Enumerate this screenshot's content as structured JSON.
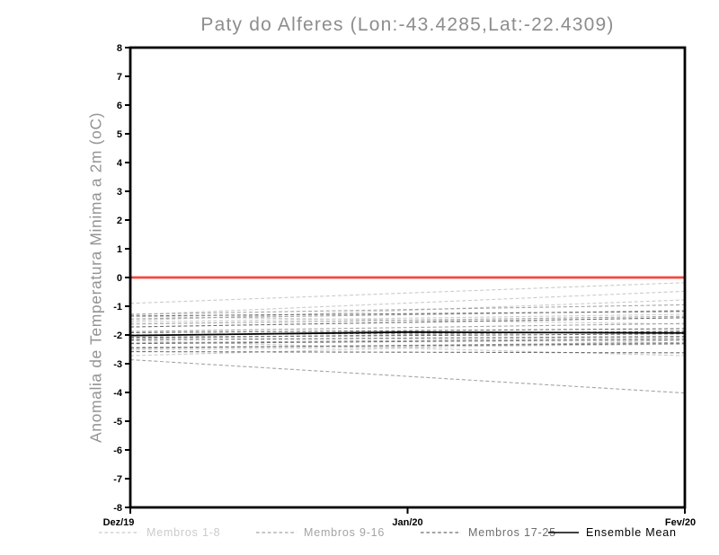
{
  "chart_data": {
    "type": "line",
    "title": "Paty do Alferes (Lon:-43.4285,Lat:-22.4309)",
    "ylabel": "Anomalia de Temperatura Minima a 2m (oC)",
    "xlabel": "",
    "ylim": [
      -8,
      8
    ],
    "y_tick_labels": [
      "8",
      "7",
      "6",
      "5",
      "4",
      "3",
      "2",
      "1",
      "0",
      "-1",
      "-2",
      "-3",
      "-4",
      "-5",
      "-6",
      "-7",
      "-8"
    ],
    "x_tick_labels": [
      "Dez/19",
      "Jan/20",
      "Fev/20"
    ],
    "x_tick_positions": [
      0,
      0.5,
      1
    ],
    "grid": false,
    "axis_color": "#000000",
    "zero_line": {
      "value": 0,
      "color": "#f2473f"
    },
    "groups": [
      {
        "name": "Membros 1-8",
        "color": "#cbcbcb"
      },
      {
        "name": "Membros 9-16",
        "color": "#a4a4a4"
      },
      {
        "name": "Membros 17-25",
        "color": "#6e6e6e"
      }
    ],
    "members": [
      {
        "group": 0,
        "start": -0.9,
        "end": -0.18
      },
      {
        "group": 0,
        "start": -1.3,
        "end": -0.48
      },
      {
        "group": 0,
        "start": -1.5,
        "end": -0.78
      },
      {
        "group": 0,
        "start": -1.55,
        "end": -1.28
      },
      {
        "group": 0,
        "start": -1.35,
        "end": -1.62
      },
      {
        "group": 0,
        "start": -2.2,
        "end": -2.72
      },
      {
        "group": 0,
        "start": -2.52,
        "end": -2.32
      },
      {
        "group": 0,
        "start": -2.72,
        "end": -2.18
      },
      {
        "group": 1,
        "start": -1.28,
        "end": -0.95
      },
      {
        "group": 1,
        "start": -1.44,
        "end": -1.15
      },
      {
        "group": 1,
        "start": -1.62,
        "end": -1.35
      },
      {
        "group": 1,
        "start": -1.88,
        "end": -1.6
      },
      {
        "group": 1,
        "start": -2.12,
        "end": -1.86
      },
      {
        "group": 1,
        "start": -2.28,
        "end": -2.1
      },
      {
        "group": 1,
        "start": -2.46,
        "end": -2.26
      },
      {
        "group": 1,
        "start": -2.86,
        "end": -4.02
      },
      {
        "group": 2,
        "start": -1.34,
        "end": -1.18
      },
      {
        "group": 2,
        "start": -1.72,
        "end": -1.4
      },
      {
        "group": 2,
        "start": -1.92,
        "end": -1.78
      },
      {
        "group": 2,
        "start": -2.0,
        "end": -1.88
      },
      {
        "group": 2,
        "start": -2.08,
        "end": -1.96
      },
      {
        "group": 2,
        "start": -2.17,
        "end": -2.05
      },
      {
        "group": 2,
        "start": -2.3,
        "end": -2.16
      },
      {
        "group": 2,
        "start": -2.44,
        "end": -2.3
      },
      {
        "group": 2,
        "start": -2.58,
        "end": -2.62
      }
    ],
    "ensemble_mean": {
      "name": "Ensemble Mean",
      "color": "#000000",
      "points": [
        -2.02,
        -1.9,
        -1.93
      ]
    }
  },
  "legend": {
    "items": [
      {
        "label": "Membros 1-8",
        "color": "#cbcbcb",
        "line_style": "dashed"
      },
      {
        "label": "Membros 9-16",
        "color": "#a4a4a4",
        "line_style": "dashed"
      },
      {
        "label": "Membros 17-25",
        "color": "#6e6e6e",
        "line_style": "dashed"
      },
      {
        "label": "Ensemble Mean",
        "color": "#000000",
        "line_style": "solid"
      }
    ]
  }
}
